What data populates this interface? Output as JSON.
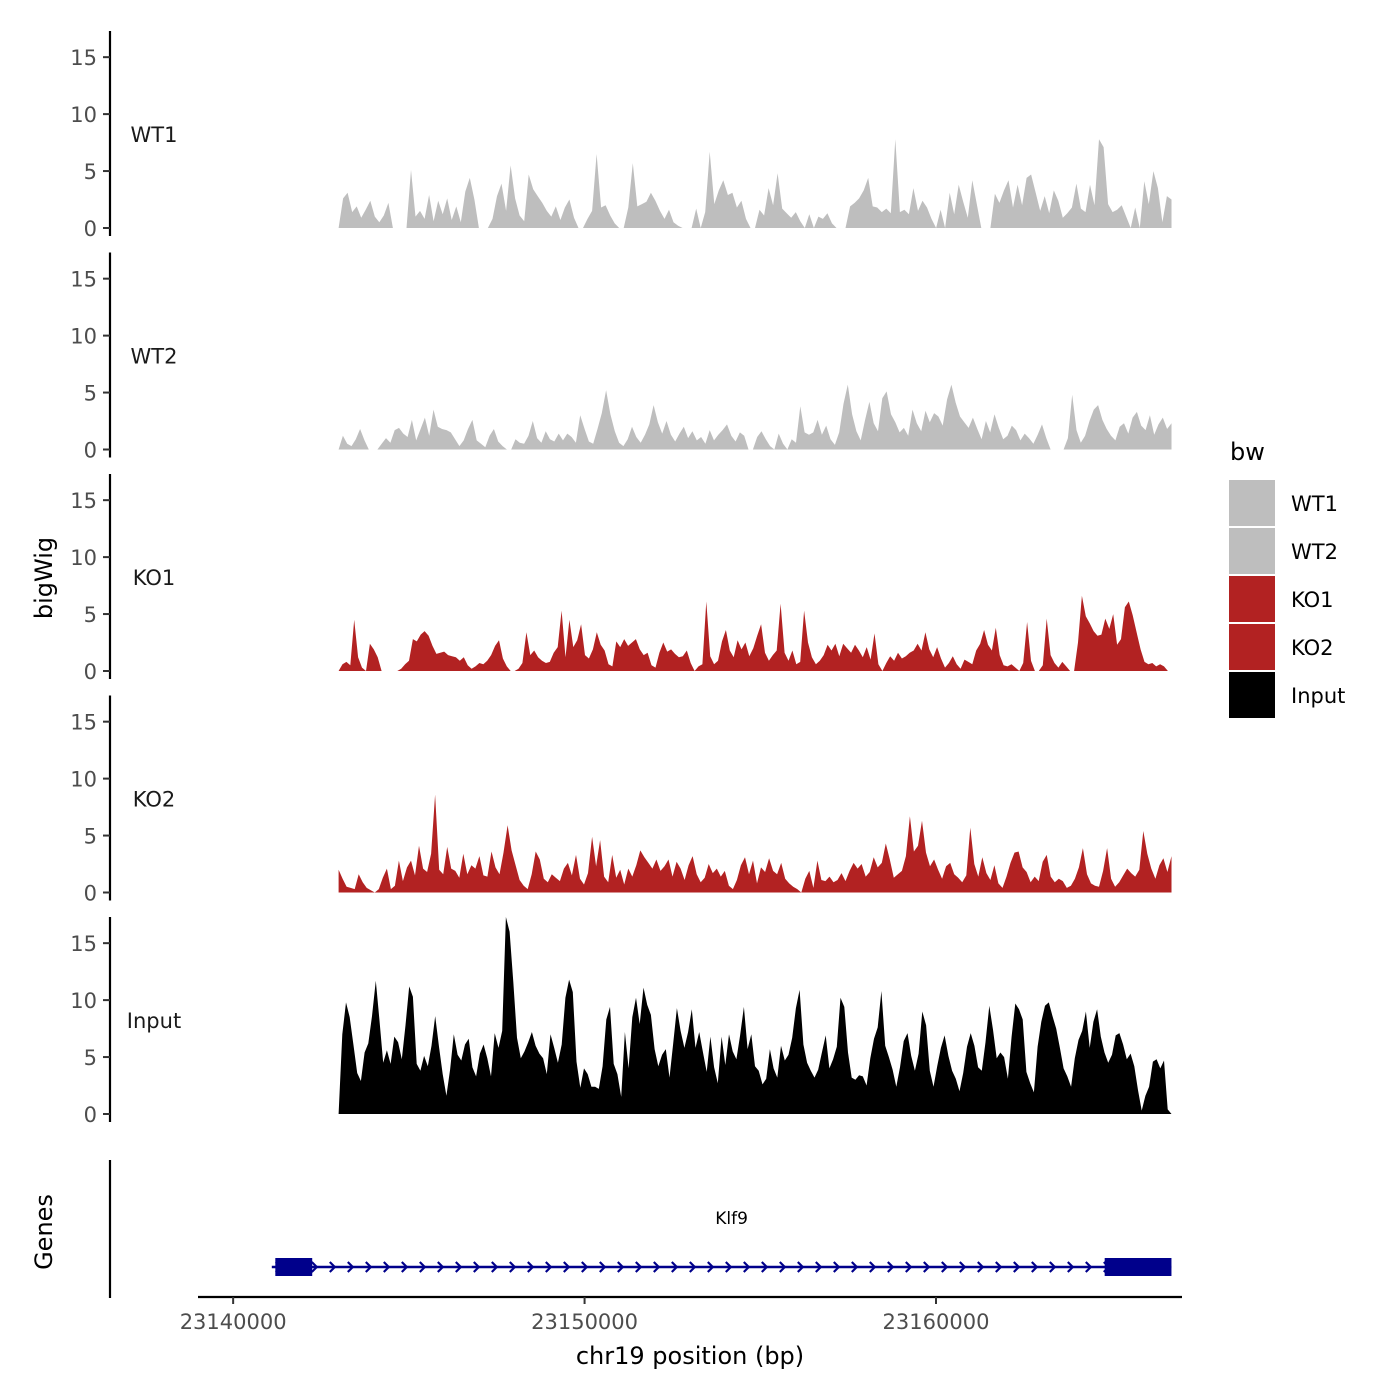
{
  "chart_data": {
    "type": "area",
    "ylabel": "bigWig",
    "genes_label": "Genes",
    "xlabel": "chr19 position (bp)",
    "x_range": [
      23139000,
      23167000
    ],
    "x_ticks": [
      23140000,
      23150000,
      23160000
    ],
    "x_tick_labels": [
      "23140000",
      "23150000",
      "23160000"
    ],
    "ylim": [
      0,
      18
    ],
    "y_ticks": [
      0,
      5,
      10,
      15
    ],
    "y_tick_labels": [
      "0",
      "5",
      "10",
      "15"
    ],
    "legend": {
      "title": "bw",
      "position": "right",
      "entries": [
        {
          "label": "WT1",
          "color": "#bebebe"
        },
        {
          "label": "WT2",
          "color": "#bebebe"
        },
        {
          "label": "KO1",
          "color": "#b22222"
        },
        {
          "label": "KO2",
          "color": "#b22222"
        },
        {
          "label": "Input",
          "color": "#000000"
        }
      ]
    },
    "series": [
      {
        "name": "WT1",
        "color": "#bebebe",
        "data_start": 23143000,
        "data_end": 23166700,
        "values": [
          0,
          2.6,
          3.1,
          1.4,
          1.9,
          0.9,
          1.6,
          2.4,
          1.0,
          0.5,
          1.1,
          2.2,
          0,
          0,
          0,
          0,
          5.1,
          1.0,
          1.5,
          0.8,
          2.9,
          0.6,
          2.4,
          1.2,
          2.6,
          0.7,
          1.9,
          0.5,
          3.2,
          4.4,
          2.5,
          0,
          0,
          0,
          0.8,
          2.8,
          3.9,
          1.5,
          5.5,
          2.6,
          1.1,
          0.6,
          4.7,
          3.4,
          2.8,
          2.2,
          1.5,
          1.0,
          1.9,
          0.7,
          1.8,
          2.5,
          0.9,
          0,
          0,
          0.8,
          1.5,
          6.5,
          1.8,
          2.0,
          1.1,
          0.4,
          0,
          0,
          1.8,
          5.7,
          1.9,
          2.1,
          2.3,
          3.1,
          2.4,
          1.5,
          0.8,
          1.6,
          0.5,
          0.2,
          0,
          0,
          0,
          1.7,
          0,
          1.4,
          6.7,
          2.1,
          3.3,
          4.2,
          2.9,
          3.1,
          1.8,
          2.4,
          0.8,
          0,
          0,
          1.6,
          1.1,
          3.5,
          2.0,
          4.8,
          1.7,
          1.3,
          0.9,
          1.4,
          0.6,
          0,
          1.2,
          0,
          1.0,
          0.8,
          1.3,
          0.4,
          0,
          0,
          0,
          1.9,
          2.2,
          2.6,
          3.3,
          4.4,
          1.9,
          1.8,
          1.4,
          1.7,
          1.3,
          7.8,
          1.4,
          1.6,
          1.2,
          3.5,
          1.5,
          2.4,
          1.8,
          0.8,
          0,
          1.6,
          0,
          3.1,
          1.2,
          3.8,
          2.3,
          0.9,
          4.2,
          2.1,
          0,
          0,
          0,
          3.0,
          2.2,
          3.3,
          4.2,
          1.8,
          3.8,
          2.0,
          4.4,
          4.7,
          3.1,
          1.5,
          2.8,
          1.3,
          3.3,
          2.4,
          0.9,
          1.3,
          1.8,
          3.9,
          1.7,
          1.4,
          3.8,
          2.0,
          7.8,
          7.1,
          2.1,
          1.4,
          1.6,
          2.0,
          1.0,
          0,
          1.8,
          0,
          4.1,
          2.1,
          5.0,
          3.5,
          0.5,
          2.8,
          2.5
        ]
      },
      {
        "name": "WT2",
        "color": "#bebebe",
        "data_start": 23143000,
        "data_end": 23166700,
        "values": [
          0,
          1.2,
          0.5,
          0.3,
          0.9,
          1.8,
          0.8,
          0,
          0,
          0,
          0.5,
          1.0,
          0.6,
          1.7,
          1.9,
          1.4,
          1.1,
          2.6,
          0.8,
          1.8,
          2.8,
          1.2,
          3.5,
          2.0,
          1.8,
          1.7,
          1.5,
          0.9,
          0.3,
          0.8,
          1.8,
          2.6,
          0.8,
          0.5,
          0.2,
          1.2,
          1.8,
          0.7,
          0.3,
          0,
          0,
          0.9,
          0.6,
          0.5,
          1.2,
          2.5,
          1.0,
          0.6,
          1.6,
          0.9,
          0.7,
          1.4,
          0.8,
          1.4,
          1.1,
          0.6,
          3.0,
          1.8,
          0.7,
          0.5,
          1.8,
          3.2,
          5.2,
          3.1,
          1.6,
          0.6,
          0.3,
          0.9,
          2.0,
          1.1,
          0.6,
          1.3,
          2.2,
          3.9,
          2.4,
          1.4,
          2.5,
          1.3,
          0.7,
          1.4,
          2.0,
          1.0,
          1.6,
          0.8,
          1.1,
          0.5,
          1.7,
          0.8,
          1.3,
          1.7,
          2.2,
          1.2,
          0.7,
          1.5,
          1.2,
          0,
          0,
          1.1,
          1.6,
          0.9,
          0.3,
          0,
          1.4,
          0.5,
          0,
          0.9,
          0.6,
          3.8,
          1.5,
          1.3,
          1.5,
          2.6,
          1.3,
          2.1,
          0.9,
          0.4,
          1.5,
          4.0,
          5.7,
          3.1,
          1.6,
          0.8,
          2.6,
          4.2,
          2.3,
          1.6,
          4.5,
          5.1,
          3.1,
          2.4,
          1.5,
          1.9,
          1.2,
          3.5,
          2.3,
          1.6,
          3.4,
          2.4,
          3.2,
          2.9,
          2.1,
          4.4,
          5.7,
          4.1,
          2.9,
          2.4,
          1.9,
          2.8,
          1.8,
          0.9,
          2.5,
          1.5,
          3.1,
          1.9,
          0.9,
          1.2,
          2.1,
          1.7,
          0.8,
          1.4,
          1.0,
          0.5,
          1.3,
          2.2,
          1.0,
          0,
          0,
          0,
          0,
          1.0,
          4.8,
          1.7,
          0.6,
          1.2,
          2.5,
          3.5,
          3.9,
          2.6,
          1.8,
          1.2,
          0.8,
          2.0,
          2.3,
          1.4,
          2.8,
          3.3,
          2.1,
          1.7,
          3.0,
          1.3,
          2.2,
          2.8,
          1.8,
          2.3
        ]
      },
      {
        "name": "KO1",
        "color": "#b22222",
        "data_start": 23143000,
        "data_end": 23166600,
        "values": [
          0,
          0.6,
          0.8,
          0.5,
          4.5,
          1.2,
          0.3,
          0,
          2.4,
          1.9,
          1.2,
          0,
          0,
          0,
          0,
          0,
          0.2,
          0.6,
          0.9,
          2.8,
          2.6,
          3.2,
          3.5,
          3.1,
          2.2,
          1.5,
          1.6,
          1.7,
          1.4,
          1.3,
          1.2,
          0.9,
          1.2,
          0.5,
          0.2,
          0.4,
          0.7,
          0.6,
          0.9,
          1.4,
          2.2,
          2.7,
          1.1,
          0.4,
          0,
          0,
          0.2,
          0.7,
          3.4,
          1.4,
          1.8,
          1.2,
          0.9,
          0.7,
          0.8,
          1.6,
          2.1,
          5.3,
          1.2,
          4.5,
          2.1,
          2.7,
          4.1,
          1.4,
          1.1,
          1.9,
          3.4,
          2.3,
          1.8,
          0.6,
          0.4,
          2.6,
          2.1,
          2.8,
          2.2,
          2.5,
          2.8,
          1.9,
          1.4,
          1.6,
          0.5,
          0.3,
          1.6,
          2.5,
          1.7,
          1.9,
          1.5,
          1.2,
          1.3,
          1.8,
          0.7,
          0,
          0.4,
          0.6,
          6.1,
          1.3,
          0.6,
          0.9,
          2.6,
          3.6,
          1.8,
          1.2,
          2.7,
          1.9,
          2.5,
          1.3,
          2.0,
          3.1,
          4.1,
          1.6,
          0.9,
          1.4,
          1.8,
          5.9,
          1.6,
          0.9,
          1.8,
          0.6,
          0.8,
          5.3,
          2.5,
          1.2,
          0.6,
          0.9,
          1.4,
          2.3,
          1.8,
          2.4,
          1.3,
          2.4,
          2.0,
          1.6,
          2.3,
          1.8,
          1.2,
          2.1,
          1.0,
          3.3,
          0.6,
          0,
          0.7,
          1.3,
          0.9,
          1.6,
          1.1,
          1.3,
          1.6,
          1.8,
          2.4,
          1.8,
          3.4,
          1.9,
          1.2,
          2.1,
          1.1,
          0.3,
          0.7,
          1.3,
          0.6,
          0.2,
          1.0,
          0.8,
          0.6,
          1.8,
          2.4,
          3.6,
          2.3,
          1.8,
          3.8,
          1.4,
          0.5,
          0.4,
          0.6,
          0.3,
          0,
          0.7,
          4.3,
          0.9,
          0,
          0,
          0.5,
          4.6,
          1.4,
          0.7,
          0.3,
          0.8,
          0.4,
          0,
          0,
          2.5,
          6.6,
          4.8,
          4.2,
          3.5,
          3.1,
          3.2,
          4.6,
          3.7,
          5.0,
          2.3,
          2.8,
          5.6,
          6.1,
          4.9,
          3.4,
          1.9,
          0.8,
          0.6,
          0.7,
          0.4,
          0.6,
          0.4,
          0
        ]
      },
      {
        "name": "KO2",
        "color": "#b22222",
        "data_start": 23143000,
        "data_end": 23166700,
        "values": [
          2.0,
          1.2,
          0.5,
          0.4,
          0.3,
          1.6,
          0.9,
          0.4,
          0.2,
          0,
          0.3,
          1.3,
          2.1,
          0.3,
          0.6,
          2.8,
          1.0,
          2.2,
          2.8,
          1.5,
          4.1,
          2.1,
          1.8,
          3.4,
          8.6,
          2.0,
          1.6,
          4.0,
          2.1,
          1.9,
          1.3,
          3.4,
          1.6,
          2.4,
          2.1,
          3.2,
          1.5,
          1.4,
          3.6,
          2.2,
          1.6,
          3.5,
          5.9,
          3.7,
          2.4,
          1.1,
          0.6,
          0.3,
          1.6,
          3.6,
          2.9,
          1.2,
          0.9,
          1.6,
          1.3,
          1.0,
          2.1,
          2.6,
          1.5,
          3.3,
          1.2,
          0.7,
          1.7,
          4.9,
          2.3,
          4.6,
          1.4,
          0.9,
          3.3,
          1.3,
          2.0,
          0.7,
          2.1,
          1.4,
          2.4,
          3.7,
          3.1,
          2.6,
          2.1,
          2.9,
          1.9,
          2.3,
          2.9,
          1.4,
          2.7,
          2.1,
          1.1,
          2.4,
          3.2,
          1.6,
          0.9,
          1.3,
          2.5,
          1.7,
          2.1,
          1.4,
          1.9,
          0.6,
          0.3,
          1.1,
          2.4,
          3.1,
          1.6,
          2.8,
          0.8,
          2.2,
          1.8,
          3.0,
          1.9,
          1.6,
          2.6,
          1.2,
          0.8,
          0.5,
          0.3,
          0,
          1.2,
          1.9,
          0.4,
          2.8,
          1.1,
          1.0,
          1.4,
          0.9,
          1.1,
          1.7,
          1.0,
          1.9,
          2.6,
          2.1,
          2.5,
          1.4,
          1.8,
          3.1,
          2.2,
          2.6,
          4.3,
          2.9,
          1.3,
          1.6,
          1.9,
          3.2,
          6.7,
          3.6,
          4.1,
          6.3,
          3.5,
          2.3,
          2.9,
          2.0,
          1.2,
          2.3,
          2.6,
          1.6,
          1.3,
          0.9,
          1.5,
          5.7,
          2.5,
          1.4,
          3.1,
          1.7,
          1.1,
          2.4,
          0.8,
          0.4,
          1.4,
          2.6,
          3.5,
          3.6,
          2.2,
          1.8,
          0.9,
          1.4,
          1.0,
          2.7,
          3.3,
          1.4,
          0.9,
          1.2,
          1.0,
          0.4,
          0.6,
          1.2,
          2.2,
          3.9,
          1.6,
          0.8,
          0.6,
          0.5,
          1.9,
          3.9,
          1.2,
          0.5,
          0.9,
          1.5,
          2.1,
          1.7,
          1.4,
          2.0,
          5.4,
          3.4,
          2.1,
          1.2,
          2.4,
          3.0,
          1.8,
          3.2
        ]
      },
      {
        "name": "Input",
        "color": "#000000",
        "data_start": 23143000,
        "data_end": 23166700,
        "values": [
          0,
          7.0,
          9.8,
          8.5,
          6.1,
          3.6,
          2.9,
          5.4,
          6.2,
          8.6,
          11.7,
          8.2,
          4.5,
          5.6,
          4.4,
          6.8,
          6.3,
          4.8,
          7.8,
          11.2,
          10.3,
          4.4,
          3.8,
          5.1,
          4.2,
          6.0,
          8.6,
          5.9,
          3.5,
          1.6,
          3.9,
          7.0,
          5.2,
          4.7,
          6.1,
          6.6,
          4.1,
          3.3,
          5.3,
          6.1,
          4.9,
          3.3,
          7.1,
          5.8,
          7.3,
          17.3,
          16.0,
          11.6,
          6.7,
          4.9,
          5.5,
          6.3,
          7.2,
          6.0,
          5.3,
          4.9,
          3.5,
          7.0,
          5.8,
          4.5,
          6.1,
          10.2,
          11.8,
          10.7,
          4.6,
          2.3,
          4.0,
          3.5,
          2.4,
          2.4,
          2.2,
          4.2,
          8.3,
          9.4,
          4.4,
          3.5,
          1.5,
          7.2,
          4.0,
          8.5,
          10.2,
          7.9,
          11.1,
          9.6,
          8.7,
          5.7,
          4.2,
          5.2,
          5.7,
          3.2,
          6.2,
          9.3,
          7.3,
          5.8,
          7.2,
          9.2,
          5.8,
          7.2,
          5.4,
          3.7,
          6.8,
          4.1,
          2.7,
          6.8,
          4.3,
          7.0,
          5.5,
          4.8,
          6.9,
          9.4,
          5.7,
          7.0,
          4.2,
          3.8,
          2.6,
          3.1,
          5.7,
          4.0,
          3.2,
          6.0,
          4.7,
          5.2,
          6.7,
          9.3,
          10.9,
          6.1,
          4.5,
          3.8,
          3.2,
          3.9,
          5.4,
          6.9,
          4.0,
          4.8,
          5.9,
          10.2,
          9.4,
          5.4,
          3.2,
          3.0,
          3.4,
          3.3,
          2.5,
          4.9,
          6.6,
          7.6,
          10.8,
          6.0,
          5.0,
          3.9,
          2.4,
          4.1,
          6.4,
          7.1,
          5.1,
          3.8,
          5.3,
          9.0,
          7.8,
          3.8,
          2.4,
          4.2,
          5.8,
          6.9,
          5.1,
          3.8,
          3.1,
          2.0,
          3.6,
          5.9,
          7.1,
          6.0,
          4.1,
          3.8,
          6.3,
          9.5,
          7.4,
          4.9,
          5.4,
          5.0,
          3.1,
          6.8,
          9.7,
          9.2,
          8.3,
          3.7,
          2.7,
          1.9,
          5.9,
          8.1,
          9.5,
          9.8,
          8.6,
          7.5,
          5.8,
          4.0,
          3.3,
          2.4,
          4.9,
          6.5,
          7.3,
          9.0,
          5.8,
          8.1,
          9.2,
          6.8,
          5.4,
          4.5,
          5.2,
          6.9,
          7.1,
          6.1,
          4.8,
          5.3,
          4.2,
          2.1,
          0.3,
          1.6,
          2.4,
          4.6,
          4.8,
          4.0,
          4.7,
          0.4,
          0
        ]
      }
    ],
    "gene_track": {
      "gene_name": "Klf9",
      "strand": "+",
      "start": 23141100,
      "end": 23166700,
      "exons": [
        [
          23141200,
          23142250
        ],
        [
          23164800,
          23166700
        ]
      ],
      "color": "#00008b"
    }
  }
}
